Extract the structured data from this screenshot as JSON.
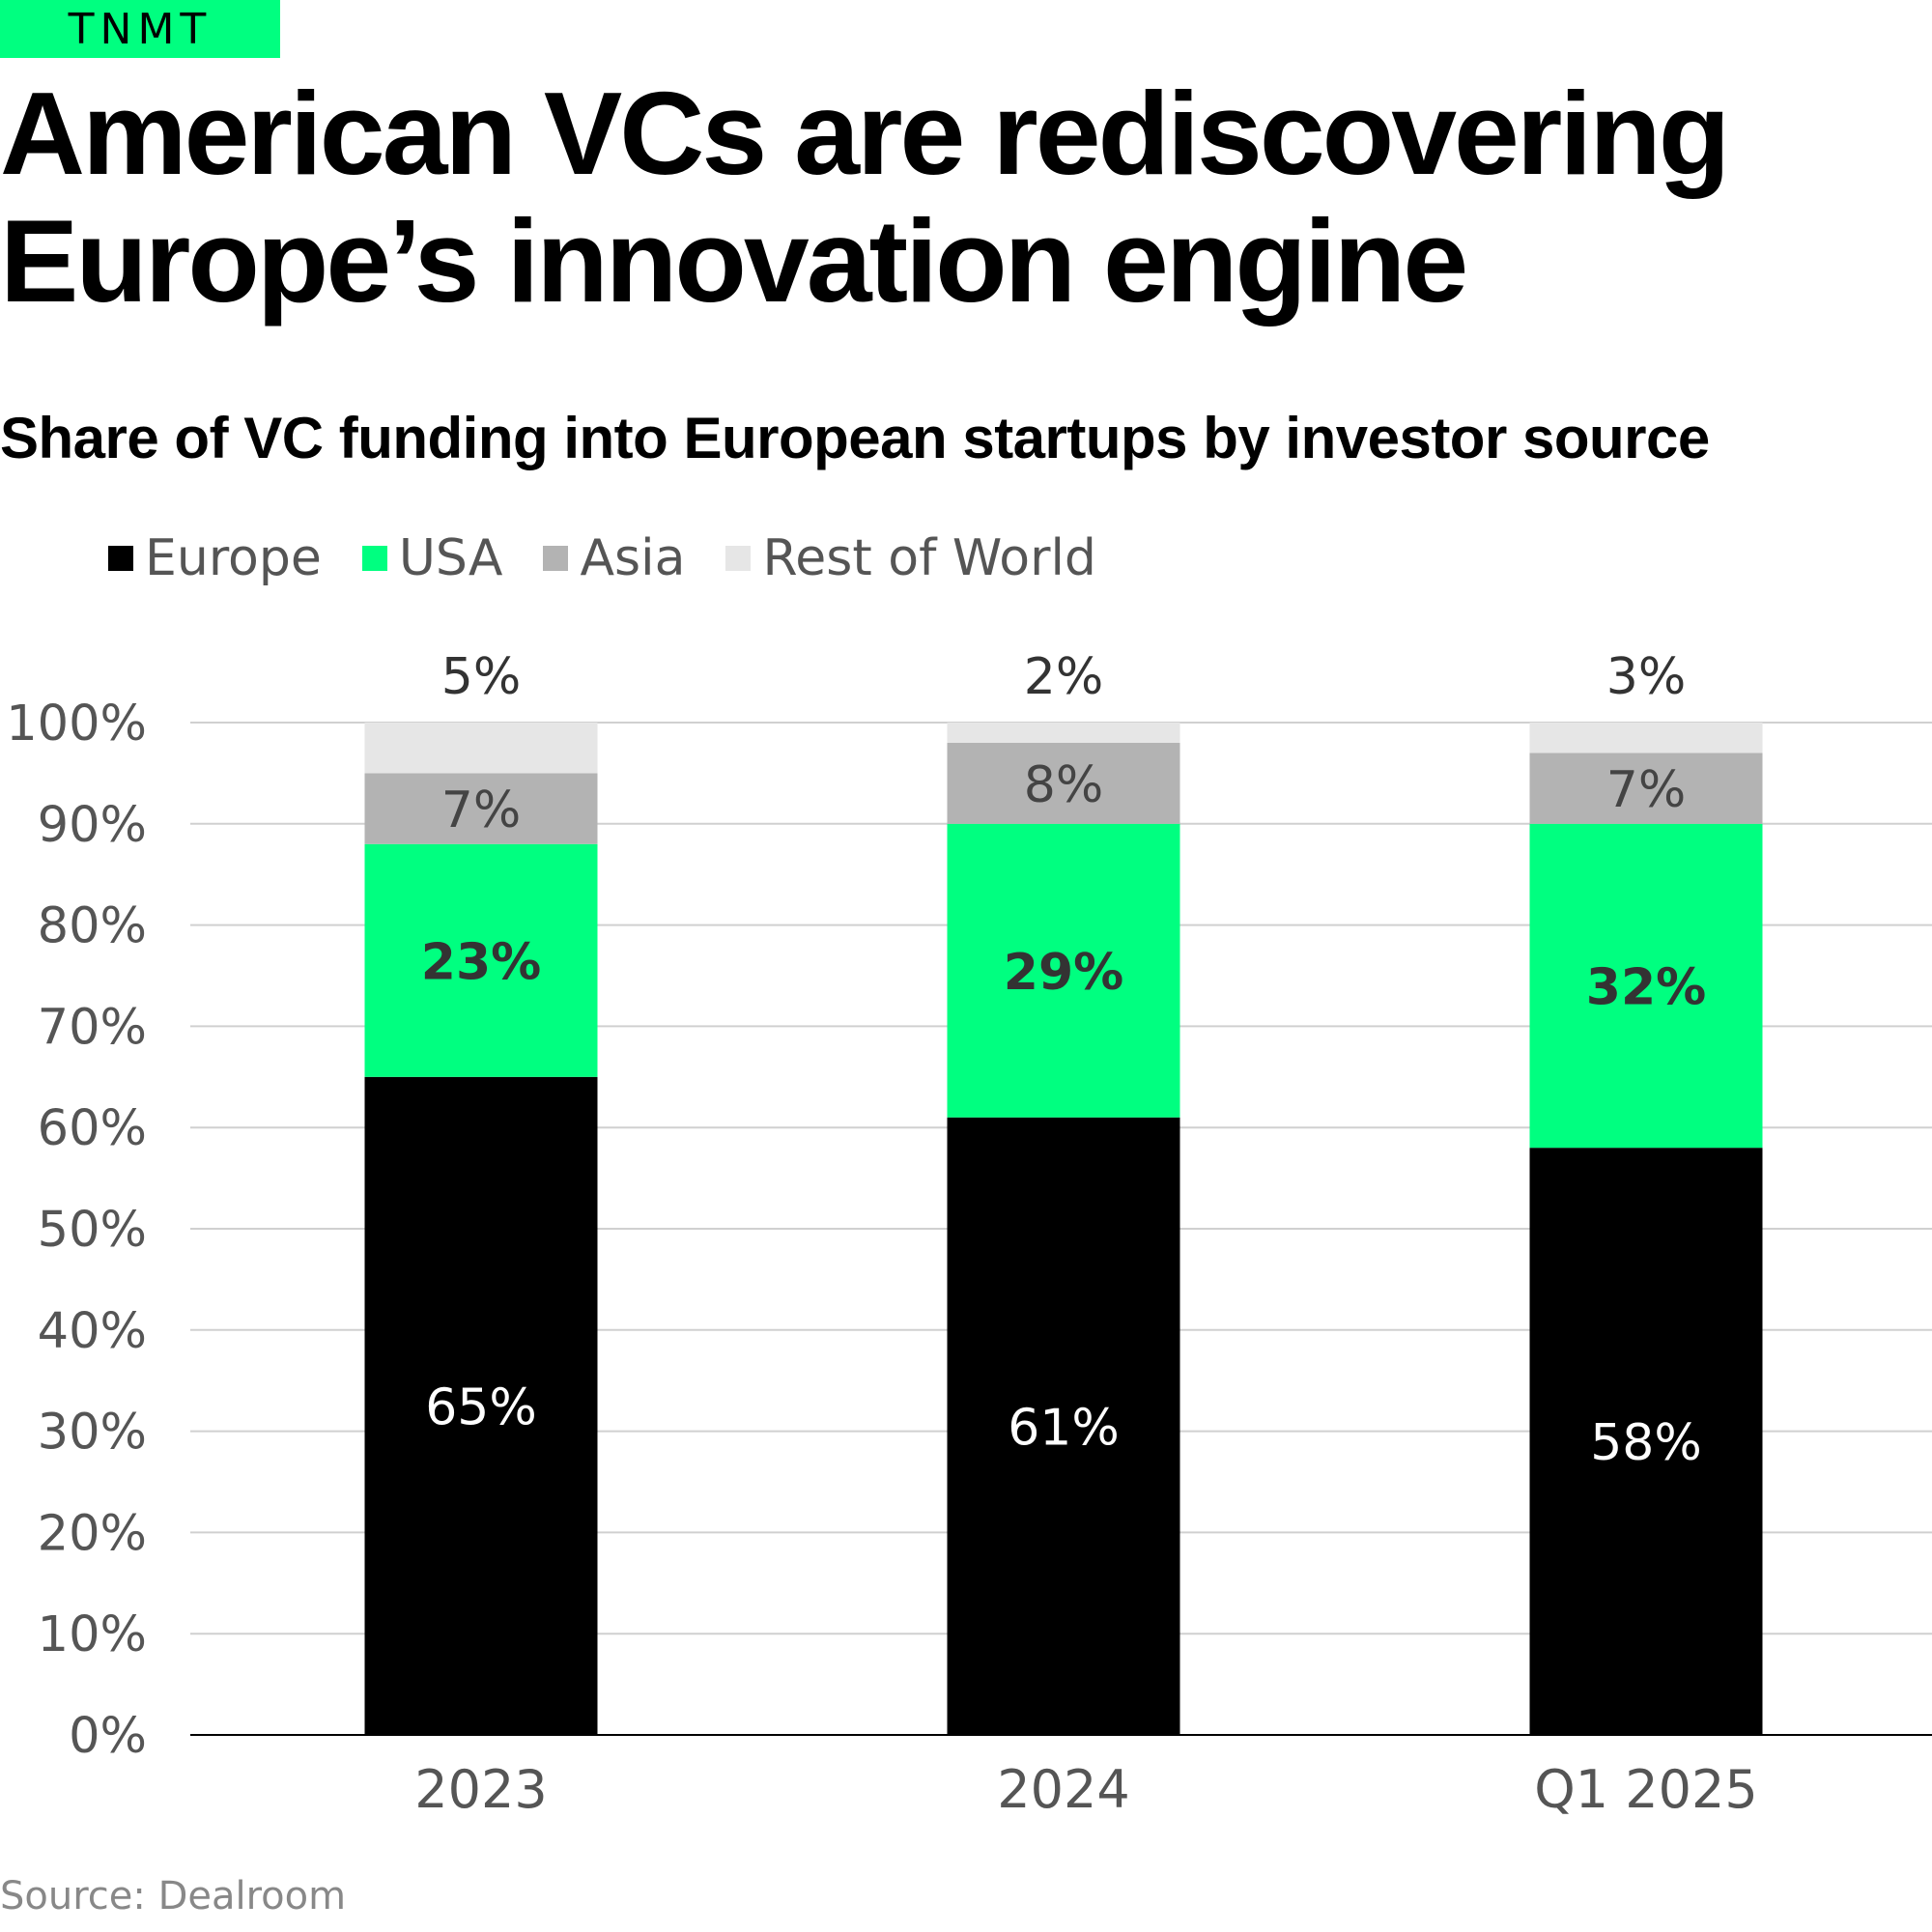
{
  "brand": {
    "label": "TNMT",
    "color": "#00ff80"
  },
  "headline": {
    "line1": "American VCs are rediscovering",
    "line2": "Europe’s innovation engine"
  },
  "chart_data": {
    "type": "bar",
    "stacked": true,
    "title": "Share of VC funding into European startups by investor source",
    "categories": [
      "2023",
      "2024",
      "Q1 2025"
    ],
    "series": [
      {
        "name": "Europe",
        "color": "#000000",
        "values": [
          65,
          61,
          58
        ],
        "labels": [
          "65%",
          "61%",
          "58%"
        ]
      },
      {
        "name": "USA",
        "color": "#00ff80",
        "values": [
          23,
          29,
          32
        ],
        "labels": [
          "23%",
          "29%",
          "32%"
        ]
      },
      {
        "name": "Asia",
        "color": "#b3b3b3",
        "values": [
          7,
          8,
          7
        ],
        "labels": [
          "7%",
          "8%",
          "7%"
        ]
      },
      {
        "name": "Rest of World",
        "color": "#e6e6e6",
        "values": [
          5,
          2,
          3
        ],
        "labels": [
          "5%",
          "2%",
          "3%"
        ]
      }
    ],
    "yticks": [
      "0%",
      "10%",
      "20%",
      "30%",
      "40%",
      "50%",
      "60%",
      "70%",
      "80%",
      "90%",
      "100%"
    ],
    "ylim": [
      0,
      100
    ],
    "grid": true,
    "legend_position": "top-left"
  },
  "source": "Source: Dealroom"
}
